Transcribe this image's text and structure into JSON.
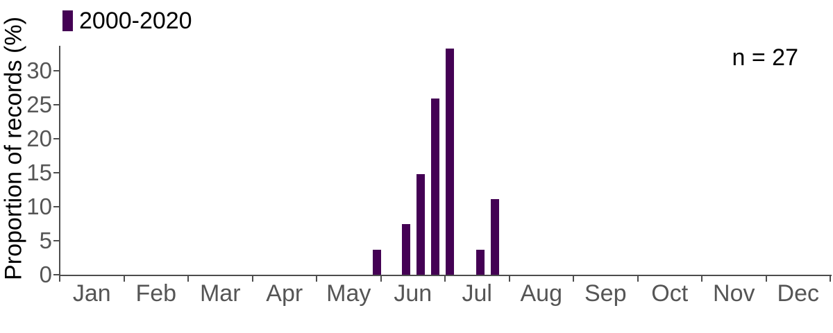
{
  "chart_data": {
    "type": "bar",
    "title": "",
    "xlabel": "",
    "ylabel": "Proportion of records (%)",
    "annotation": "n = 27",
    "legend": {
      "position": "top-left",
      "entries": [
        {
          "label": "2000-2020",
          "color": "#440154"
        }
      ]
    },
    "x_axis": {
      "categories": [
        "Jan",
        "Feb",
        "Mar",
        "Apr",
        "May",
        "Jun",
        "Jul",
        "Aug",
        "Sep",
        "Oct",
        "Nov",
        "Dec"
      ],
      "ticks_at": "month boundaries"
    },
    "y_axis": {
      "ticks": [
        0,
        5,
        10,
        15,
        20,
        25,
        30
      ],
      "range": [
        0,
        34
      ]
    },
    "grid": false,
    "series": [
      {
        "name": "2000-2020",
        "color": "#440154",
        "n": 27,
        "bin_width_days": 7,
        "bars": [
          {
            "month_pos": 4.94,
            "value_pct": 3.7,
            "count": 1
          },
          {
            "month_pos": 5.39,
            "value_pct": 7.4,
            "count": 2
          },
          {
            "month_pos": 5.62,
            "value_pct": 14.8,
            "count": 4
          },
          {
            "month_pos": 5.85,
            "value_pct": 25.9,
            "count": 7
          },
          {
            "month_pos": 6.08,
            "value_pct": 33.3,
            "count": 9
          },
          {
            "month_pos": 6.55,
            "value_pct": 3.7,
            "count": 1
          },
          {
            "month_pos": 6.78,
            "value_pct": 11.1,
            "count": 3
          }
        ]
      }
    ],
    "theme": {
      "bar_color": "#440154",
      "axis_color": "#4d4d4d",
      "tick_label_color": "#555555",
      "text_color": "#000000",
      "background": "#ffffff"
    }
  }
}
